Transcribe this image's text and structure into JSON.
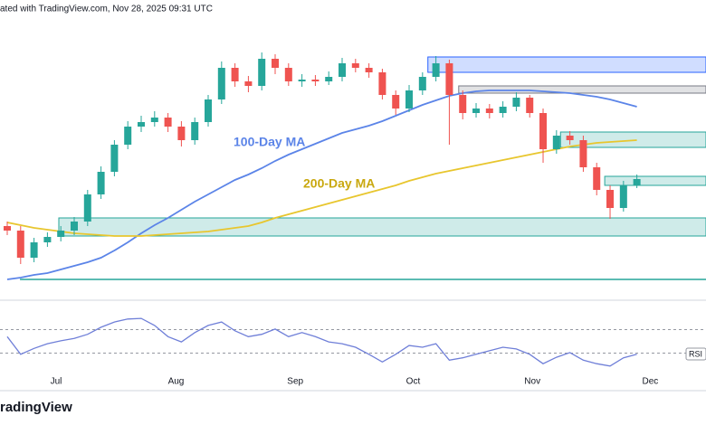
{
  "chart_data": {
    "type": "candlestick",
    "title": "ated with TradingView.com, Nov 28, 2025 09:31 UTC",
    "logo": "radingView",
    "xlim": [
      -0.54,
      52.16
    ],
    "ylim": [
      0,
      270
    ],
    "xticks": [
      {
        "value": 3.65,
        "label": "Jul"
      },
      {
        "value": 12.6,
        "label": "Aug"
      },
      {
        "value": 21.5,
        "label": "Sep"
      },
      {
        "value": 30.3,
        "label": "Oct"
      },
      {
        "value": 39.2,
        "label": "Nov"
      },
      {
        "value": 48.0,
        "label": "Dec"
      }
    ],
    "up_color": "#26a69a",
    "down_color": "#ef5350",
    "open": [
      70,
      65,
      35,
      52,
      58,
      65,
      75,
      105,
      130,
      160,
      180,
      185,
      190,
      180,
      165,
      185,
      210,
      245,
      230,
      225,
      255,
      245,
      230,
      232,
      230,
      235,
      250,
      245,
      240,
      215,
      200,
      220,
      235,
      250,
      215,
      195,
      200,
      195,
      202,
      212,
      195,
      155,
      170,
      165,
      135,
      110,
      90,
      115
    ],
    "high": [
      75,
      70,
      57,
      63,
      70,
      80,
      110,
      136,
      165,
      186,
      192,
      197,
      195,
      186,
      190,
      215,
      252,
      250,
      236,
      262,
      260,
      250,
      238,
      237,
      241,
      256,
      255,
      250,
      244,
      220,
      226,
      240,
      258,
      254,
      220,
      206,
      205,
      208,
      218,
      215,
      200,
      176,
      175,
      170,
      140,
      115,
      120,
      127
    ],
    "low": [
      60,
      28,
      30,
      47,
      53,
      60,
      70,
      100,
      125,
      155,
      174,
      180,
      174,
      158,
      160,
      180,
      205,
      224,
      218,
      220,
      238,
      225,
      224,
      225,
      226,
      230,
      240,
      234,
      210,
      193,
      196,
      215,
      230,
      160,
      188,
      190,
      189,
      190,
      197,
      190,
      140,
      150,
      160,
      130,
      104,
      78,
      86,
      112
    ],
    "close": [
      65,
      35,
      52,
      58,
      65,
      75,
      105,
      130,
      160,
      180,
      185,
      190,
      180,
      165,
      185,
      210,
      245,
      230,
      225,
      255,
      245,
      230,
      232,
      230,
      235,
      250,
      245,
      240,
      215,
      200,
      220,
      235,
      250,
      215,
      195,
      200,
      195,
      202,
      212,
      195,
      155,
      170,
      165,
      135,
      110,
      90,
      115,
      122
    ],
    "series": [
      {
        "name": "100-Day MA",
        "color": "#5b84e8",
        "values": [
          11,
          13,
          16,
          18,
          22,
          26,
          30,
          35,
          43,
          52,
          62,
          71,
          79,
          88,
          97,
          105,
          113,
          121,
          127,
          134,
          142,
          149,
          155,
          161,
          167,
          173,
          177,
          181,
          186,
          192,
          198,
          204,
          209,
          214,
          217,
          219,
          220,
          220,
          220,
          220,
          219,
          218,
          217,
          215,
          213,
          210,
          206,
          202
        ]
      },
      {
        "name": "200-Day MA",
        "color": "#e8c62e",
        "values": [
          74,
          71,
          68,
          66,
          64,
          62,
          61,
          60,
          59,
          59,
          59,
          60,
          61,
          62,
          63,
          64,
          66,
          68,
          70,
          74,
          79,
          83,
          87,
          91,
          95,
          99,
          103,
          107,
          111,
          115,
          120,
          124,
          128,
          131,
          134,
          137,
          140,
          143,
          146,
          149,
          152,
          155,
          158,
          160,
          162,
          163,
          164,
          165
        ]
      }
    ],
    "zones": [
      {
        "low": 240,
        "high": 257,
        "from": 31.4,
        "color": "#2962ff"
      },
      {
        "low": 217,
        "high": 225,
        "from": 33.7,
        "color": "#787b86"
      },
      {
        "low": 157,
        "high": 174,
        "from": 41.3,
        "color": "#26a69a"
      },
      {
        "low": 115,
        "high": 125,
        "from": 44.6,
        "color": "#26a69a"
      },
      {
        "low": 59,
        "high": 79,
        "from": 3.85,
        "color": "#26a69a"
      }
    ],
    "levels": [
      {
        "value": 11,
        "from": 0.95,
        "color": "#26a69a"
      }
    ],
    "rsi": {
      "name": "RSI",
      "color": "#6f7fd8",
      "ylim": [
        0,
        100
      ],
      "levels": [
        30,
        70
      ],
      "values": [
        58,
        28,
        38,
        46,
        51,
        55,
        62,
        74,
        83,
        88,
        89,
        77,
        58,
        49,
        65,
        77,
        83,
        68,
        58,
        62,
        71,
        58,
        65,
        58,
        49,
        46,
        40,
        28,
        15,
        28,
        43,
        40,
        46,
        18,
        22,
        28,
        34,
        40,
        37,
        28,
        12,
        23,
        31,
        18,
        12,
        8,
        22,
        28
      ]
    }
  }
}
